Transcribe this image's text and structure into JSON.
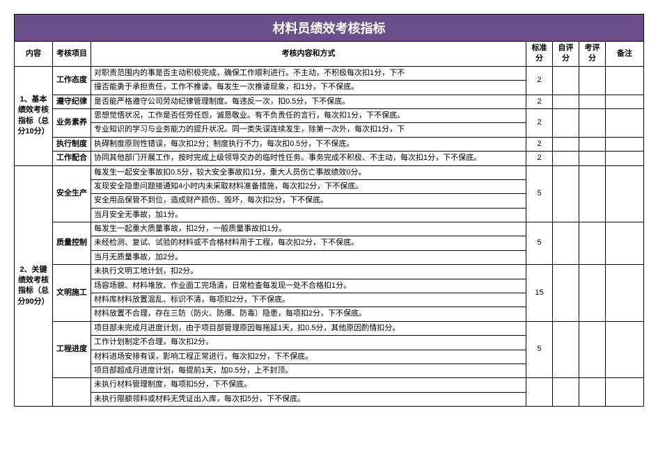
{
  "title": "材料员绩效考核指标",
  "headers": {
    "section": "内容",
    "item": "考核项目",
    "content": "考核内容和方式",
    "standard": "标准分",
    "self": "自评分",
    "review": "考评分",
    "remark": "备注"
  },
  "section1": {
    "label": "1、基本绩效考核指标（总分10分）",
    "items": {
      "attitude": {
        "label": "工作态度",
        "rows": [
          "对职责范围内的事是否主动积极完成，确保工作顺利进行。不主动，不积极每次扣1分，下不",
          "撞否能勇于承担责任，工作不推诿。每发生一次推诿现象，扣1分，下不保底。"
        ],
        "score": "2"
      },
      "discipline": {
        "label": "遵守纪律",
        "row": "是否能严格遵守公司劳动纪律管理制度。每违反一次，扣0.5分，下不保底。",
        "score": "2"
      },
      "professional": {
        "label": "业务素养",
        "rows": [
          "思想觉悟状况，工作是否任劳任怨，诚恳敬业。有不负责任的言行，每次扣1分，下不保底。",
          "专业知识的学习与业务能力的提升状况。同一类失误连续发生，除第一次外，每次扣1分，下"
        ],
        "score": "2"
      },
      "execution": {
        "label": "执行制度",
        "row": "执碍制度原则性错误，每次扣2分；制度执行不力，每次扣0.5分，下不保底。",
        "score": "2"
      },
      "cooperation": {
        "label": "工作配合",
        "row": "协同其他部门开展工作，按时完成上级领导交办的临时性任务。事务完成不积极、不主动，每次扣1分，下不保底。",
        "score": "2"
      }
    }
  },
  "section2": {
    "label": "2、关键绩效考核指标（总分90分）",
    "items": {
      "safety": {
        "label": "安全生产",
        "rows": [
          "每发生一起安全事故扣0.5分，较大安全事故扣1分，重大人员伤亡事故绩效0分。",
          "发现安全隐患问题接通知4小时内未采取材料准备措施，每次扣2分，下不保底。",
          "安全用品保管不到位，造成财产损伤、毁坏，每次扣2分，下不保底。",
          "当月安全无事故，加1分。"
        ],
        "score": "5"
      },
      "quality": {
        "label": "质量控制",
        "rows": [
          "每发生一起重大质量事故，扣2分，一般质量事故扣1分。",
          "未经检测、复试、试验的材料或不合格材料用于工程，每次扣2分，下不保底。",
          "当月无质量事故，加2分。"
        ],
        "score": "5"
      },
      "civilized": {
        "label": "文明施工",
        "rows": [
          "未执行文明工地计划，扣2分。",
          "场容场貌、材料堆放、作业面工完场清，日常检查每发现一处不合格扣1分。",
          "材料库材料放置混乱、标识不清，每项扣2分，下不保底。",
          "材料放置不合理，存在三防（防火、防爆、防毒）隐患，每项扣2分，下不保底。"
        ],
        "score": "15"
      },
      "progress": {
        "label": "工程进度",
        "rows": [
          "项目部未完成月进度计划，由于项目部管理原因每拖延1天，扣0.5分，其他原因酌情扣分。",
          "工作计划制定不合理，每次扣2分。",
          "材料进场安排有误，影响工程正常进行，每次扣2分，下不保底。",
          "项目部超成月进度计划，每提前1天，加0.5分，上不封顶。"
        ],
        "score": "5"
      },
      "extra": {
        "rows": [
          "未执行材料管理制度，每项扣5分，下不保底。",
          "未执行限额领料或材料无凭证出入库，每次扣5分，下不保底。"
        ]
      }
    }
  },
  "colors": {
    "title_bg": "#6b4f8a",
    "title_text": "#ffffff",
    "border": "#000000",
    "background": "#ffffff"
  }
}
